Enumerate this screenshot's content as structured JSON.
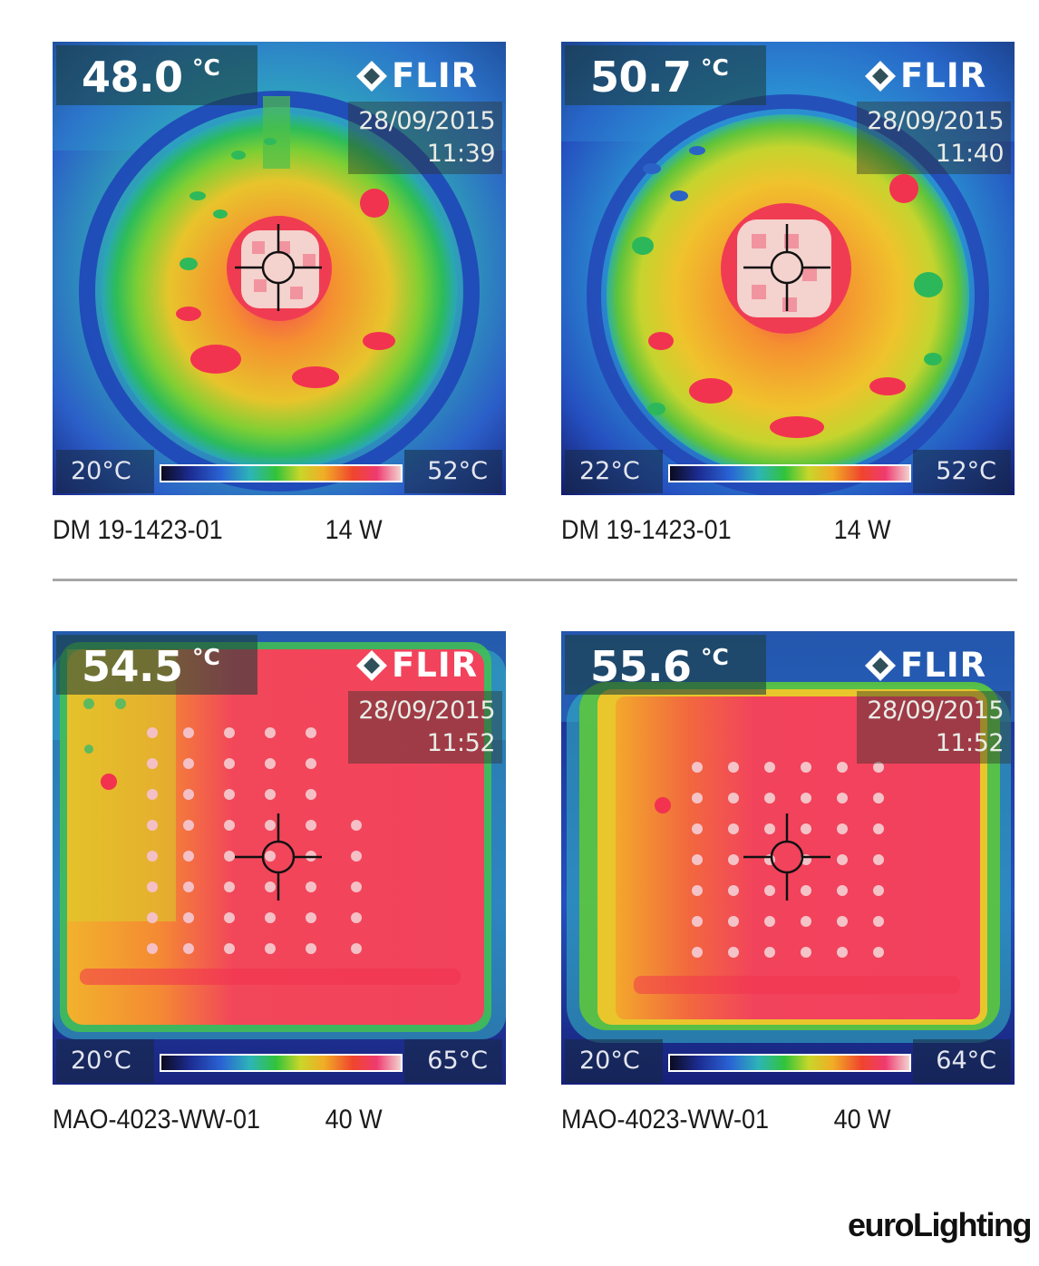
{
  "panels": [
    {
      "spot_temp": "48.0",
      "unit": "°C",
      "logo": "FLIR",
      "date": "28/09/2015",
      "time": "11:39",
      "scale_min": "20°C",
      "scale_max": "52°C",
      "model": "DM 19-1423-01",
      "power": "14 W"
    },
    {
      "spot_temp": "50.7",
      "unit": "°C",
      "logo": "FLIR",
      "date": "28/09/2015",
      "time": "11:40",
      "scale_min": "22°C",
      "scale_max": "52°C",
      "model": "DM 19-1423-01",
      "power": "14 W"
    },
    {
      "spot_temp": "54.5",
      "unit": "°C",
      "logo": "FLIR",
      "date": "28/09/2015",
      "time": "11:52",
      "scale_min": "20°C",
      "scale_max": "65°C",
      "model": "MAO-4023-WW-01",
      "power": "40 W"
    },
    {
      "spot_temp": "55.6",
      "unit": "°C",
      "logo": "FLIR",
      "date": "28/09/2015",
      "time": "11:52",
      "scale_min": "20°C",
      "scale_max": "64°C",
      "model": "MAO-4023-WW-01",
      "power": "40 W"
    }
  ],
  "brand": "euroLighting",
  "colors": {
    "cold": "#16207a",
    "cool": "#2f8fd9",
    "mild": "#34c43a",
    "warm": "#f3b42a",
    "hot": "#f03c52",
    "hottest": "#f4d4cc"
  }
}
